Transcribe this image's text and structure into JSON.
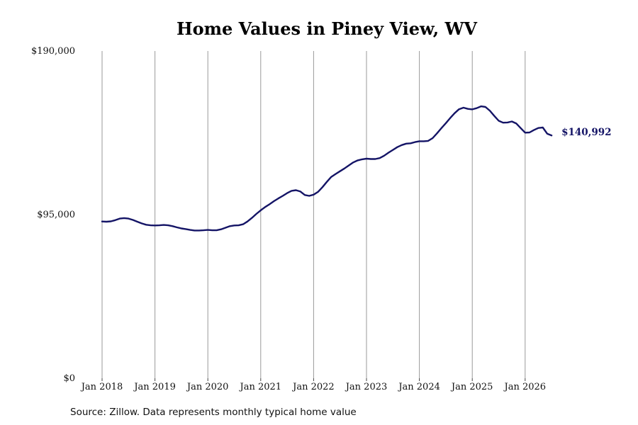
{
  "chart_data": {
    "type": "line",
    "title": "Home Values in Piney View, WV",
    "source_note": "Source: Zillow. Data represents monthly typical home value",
    "y_tick_labels": [
      "$0",
      "$95,000",
      "$190,000"
    ],
    "y_ticks": [
      0,
      95000,
      190000
    ],
    "ylim": [
      0,
      190000
    ],
    "x_tick_labels": [
      "Jan 2018",
      "Jan 2019",
      "Jan 2020",
      "Jan 2021",
      "Jan 2022",
      "Jan 2023",
      "Jan 2024",
      "Jan 2025",
      "Jan 2026"
    ],
    "x_ticks": [
      "2018-01",
      "2019-01",
      "2020-01",
      "2021-01",
      "2022-01",
      "2023-01",
      "2024-01",
      "2025-01",
      "2026-01"
    ],
    "xlim": [
      "2018-01",
      "2026-07"
    ],
    "vertical_gridlines": true,
    "line_color": "#141466",
    "grid_color": "#9a9a9a",
    "end_label": "$140,992",
    "series": [
      {
        "x": [
          "2018-01",
          "2018-02",
          "2018-03",
          "2018-04",
          "2018-05",
          "2018-06",
          "2018-07",
          "2018-08",
          "2018-09",
          "2018-10",
          "2018-11",
          "2018-12",
          "2019-01",
          "2019-02",
          "2019-03",
          "2019-04",
          "2019-05",
          "2019-06",
          "2019-07",
          "2019-08",
          "2019-09",
          "2019-10",
          "2019-11",
          "2019-12",
          "2020-01",
          "2020-02",
          "2020-03",
          "2020-04",
          "2020-05",
          "2020-06",
          "2020-07",
          "2020-08",
          "2020-09",
          "2020-10",
          "2020-11",
          "2020-12",
          "2021-01",
          "2021-02",
          "2021-03",
          "2021-04",
          "2021-05",
          "2021-06",
          "2021-07",
          "2021-08",
          "2021-09",
          "2021-10",
          "2021-11",
          "2021-12",
          "2022-01",
          "2022-02",
          "2022-03",
          "2022-04",
          "2022-05",
          "2022-06",
          "2022-07",
          "2022-08",
          "2022-09",
          "2022-10",
          "2022-11",
          "2022-12",
          "2023-01",
          "2023-02",
          "2023-03",
          "2023-04",
          "2023-05",
          "2023-06",
          "2023-07",
          "2023-08",
          "2023-09",
          "2023-10",
          "2023-11",
          "2023-12",
          "2024-01",
          "2024-02",
          "2024-03",
          "2024-04",
          "2024-05",
          "2024-06",
          "2024-07",
          "2024-08",
          "2024-09",
          "2024-10",
          "2024-11",
          "2024-12",
          "2025-01",
          "2025-02",
          "2025-03",
          "2025-04",
          "2025-05",
          "2025-06",
          "2025-07",
          "2025-08",
          "2025-09",
          "2025-10",
          "2025-11",
          "2025-12",
          "2026-01",
          "2026-02",
          "2026-03",
          "2026-04",
          "2026-05",
          "2026-06",
          "2026-07"
        ],
        "values": [
          91000,
          90900,
          91100,
          91800,
          92700,
          93000,
          92700,
          91900,
          90900,
          89900,
          89100,
          88800,
          88700,
          88800,
          89000,
          88800,
          88300,
          87600,
          87000,
          86600,
          86100,
          85800,
          85800,
          85900,
          86100,
          85900,
          85900,
          86500,
          87400,
          88300,
          88700,
          88800,
          89400,
          91000,
          93100,
          95400,
          97500,
          99400,
          101000,
          102800,
          104400,
          105900,
          107500,
          108800,
          109200,
          108400,
          106400,
          105900,
          106600,
          108200,
          110900,
          114000,
          116900,
          118600,
          120200,
          121800,
          123600,
          125300,
          126500,
          127100,
          127500,
          127300,
          127300,
          127800,
          129200,
          131000,
          132600,
          134200,
          135400,
          136200,
          136400,
          137100,
          137600,
          137600,
          137800,
          139400,
          142200,
          145200,
          148100,
          151100,
          153900,
          156200,
          157100,
          156400,
          156100,
          156800,
          157900,
          157500,
          155300,
          152300,
          149500,
          148400,
          148500,
          149100,
          147900,
          145200,
          142600,
          142700,
          144100,
          145300,
          145600,
          142000,
          140992
        ]
      }
    ]
  }
}
